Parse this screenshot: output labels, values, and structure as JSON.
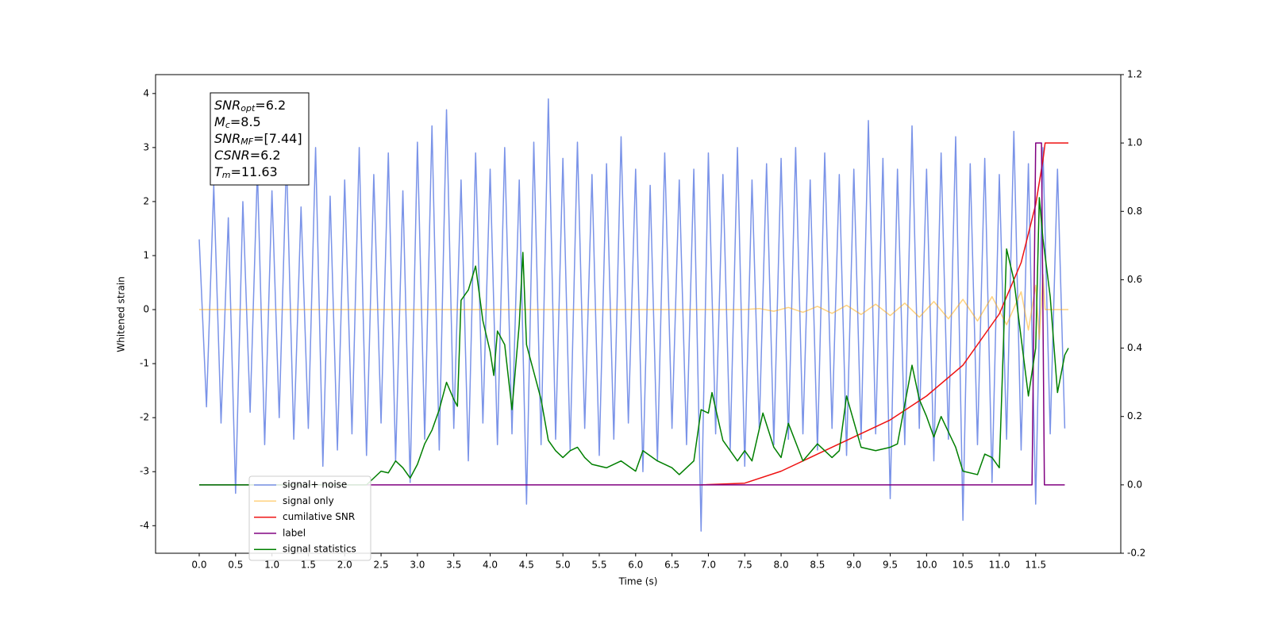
{
  "chart_data": {
    "type": "line",
    "xlabel": "Time (s)",
    "ylabel": "Whitened strain",
    "xlim": [
      -0.6,
      12.67
    ],
    "ylim": [
      -4.51,
      4.35
    ],
    "y2lim": [
      -0.2,
      1.2
    ],
    "xticks": [
      {
        "value": 0,
        "label": "0.0"
      },
      0.5,
      {
        "value": 1,
        "label": "1.0"
      },
      1.5,
      {
        "value": 2,
        "label": "2.0"
      },
      2.5,
      {
        "value": 3,
        "label": "3.0"
      },
      3.5,
      {
        "value": 4,
        "label": "4.0"
      },
      4.5,
      {
        "value": 5,
        "label": "5.0"
      },
      5.5,
      {
        "value": 6,
        "label": "6.0"
      },
      6.5,
      {
        "value": 7,
        "label": "7.0"
      },
      7.5,
      {
        "value": 8,
        "label": "8.0"
      },
      8.5,
      {
        "value": 9,
        "label": "9.0"
      },
      9.5,
      {
        "value": 10,
        "label": "10.0"
      },
      10.5,
      {
        "value": 11,
        "label": "11.0"
      },
      11.5
    ],
    "yticks": [
      -4,
      -3,
      -2,
      -1,
      0,
      1,
      2,
      3,
      4
    ],
    "y2ticks": [
      -0.2,
      {
        "value": 0,
        "label": "0.0"
      },
      0.2,
      0.4,
      0.6,
      0.8,
      {
        "value": 1,
        "label": "1.0"
      },
      1.2
    ],
    "legend": "lower left",
    "annotation": [
      {
        "symbol": "SNR",
        "subscript": "opt",
        "text": "=6.2"
      },
      {
        "symbol": "M",
        "subscript": "c",
        "text": "=8.5"
      },
      {
        "symbol": "SNR",
        "subscript": "MF",
        "text": "=[7.44]"
      },
      {
        "symbol": "CSNR",
        "subscript": "",
        "text": "=6.2"
      },
      {
        "symbol": "T",
        "subscript": "m",
        "text": "=11.63"
      }
    ],
    "series": [
      {
        "name": "signal+ noise",
        "color": "#7a93e8",
        "axis": "y",
        "x": [
          0.0,
          0.1,
          0.2,
          0.3,
          0.4,
          0.5,
          0.6,
          0.7,
          0.8,
          0.9,
          1.0,
          1.1,
          1.2,
          1.3,
          1.4,
          1.5,
          1.6,
          1.7,
          1.8,
          1.9,
          2.0,
          2.1,
          2.2,
          2.3,
          2.4,
          2.5,
          2.6,
          2.7,
          2.8,
          2.9,
          3.0,
          3.1,
          3.2,
          3.3,
          3.4,
          3.5,
          3.6,
          3.7,
          3.8,
          3.9,
          4.0,
          4.1,
          4.2,
          4.3,
          4.4,
          4.5,
          4.6,
          4.7,
          4.8,
          4.9,
          5.0,
          5.1,
          5.2,
          5.3,
          5.4,
          5.5,
          5.6,
          5.7,
          5.8,
          5.9,
          6.0,
          6.1,
          6.2,
          6.3,
          6.4,
          6.5,
          6.6,
          6.7,
          6.8,
          6.9,
          7.0,
          7.1,
          7.2,
          7.3,
          7.4,
          7.5,
          7.6,
          7.7,
          7.8,
          7.9,
          8.0,
          8.1,
          8.2,
          8.3,
          8.4,
          8.5,
          8.6,
          8.7,
          8.8,
          8.9,
          9.0,
          9.1,
          9.2,
          9.3,
          9.4,
          9.5,
          9.6,
          9.7,
          9.8,
          9.9,
          10.0,
          10.1,
          10.2,
          10.3,
          10.4,
          10.5,
          10.6,
          10.7,
          10.8,
          10.9,
          11.0,
          11.1,
          11.2,
          11.3,
          11.4,
          11.5,
          11.6,
          11.7,
          11.8,
          11.9
        ],
        "values": [
          1.3,
          -1.8,
          2.3,
          -2.1,
          1.7,
          -3.4,
          2.0,
          -1.9,
          2.6,
          -2.5,
          2.2,
          -2.0,
          2.8,
          -2.4,
          1.9,
          -2.2,
          3.0,
          -2.9,
          2.1,
          -2.6,
          2.4,
          -2.3,
          3.0,
          -2.7,
          2.5,
          -2.1,
          2.9,
          -2.8,
          2.2,
          -3.2,
          3.1,
          -2.4,
          3.4,
          -2.6,
          3.7,
          -2.2,
          2.4,
          -2.8,
          2.9,
          -2.1,
          2.6,
          -2.5,
          3.0,
          -2.3,
          2.4,
          -3.6,
          3.1,
          -2.5,
          3.9,
          -2.4,
          2.8,
          -2.6,
          3.1,
          -2.2,
          2.5,
          -2.7,
          2.7,
          -2.4,
          3.2,
          -2.1,
          2.6,
          -3.0,
          2.3,
          -2.8,
          2.9,
          -2.2,
          2.4,
          -2.5,
          2.6,
          -4.1,
          2.9,
          -2.3,
          2.5,
          -2.6,
          3.0,
          -2.9,
          2.4,
          -2.2,
          2.7,
          -2.5,
          2.8,
          -2.4,
          3.0,
          -2.3,
          2.4,
          -2.6,
          2.9,
          -2.2,
          2.5,
          -2.7,
          2.6,
          -2.4,
          3.5,
          -2.3,
          2.8,
          -3.5,
          2.6,
          -2.5,
          3.4,
          -2.2,
          2.6,
          -2.8,
          2.9,
          -2.4,
          3.2,
          -3.9,
          2.7,
          -2.5,
          2.8,
          -3.2,
          2.5,
          -2.4,
          3.3,
          -2.6,
          2.7,
          -3.6,
          3.0,
          -2.3,
          2.6,
          -2.2
        ]
      },
      {
        "name": "signal only",
        "color": "#ffa500",
        "axis": "y",
        "x": [
          0.0,
          7.5,
          7.7,
          7.9,
          8.1,
          8.3,
          8.5,
          8.7,
          8.9,
          9.1,
          9.3,
          9.5,
          9.7,
          9.9,
          10.1,
          10.3,
          10.5,
          10.7,
          10.9,
          11.1,
          11.3,
          11.4,
          11.5,
          11.55,
          11.6,
          11.63,
          11.95
        ],
        "values": [
          0,
          0,
          0.02,
          -0.03,
          0.04,
          -0.05,
          0.06,
          -0.07,
          0.08,
          -0.09,
          0.1,
          -0.11,
          0.12,
          -0.14,
          0.15,
          -0.17,
          0.19,
          -0.21,
          0.24,
          -0.28,
          0.33,
          -0.38,
          0.45,
          -0.55,
          0.65,
          0,
          0
        ]
      },
      {
        "name": "cumilative SNR",
        "color": "#ee1111",
        "axis": "y2",
        "x": [
          6.9,
          7.5,
          8.0,
          8.5,
          9.0,
          9.5,
          10.0,
          10.5,
          11.0,
          11.3,
          11.5,
          11.6,
          11.63,
          11.95
        ],
        "values": [
          0,
          0.005,
          0.04,
          0.09,
          0.14,
          0.19,
          0.26,
          0.35,
          0.5,
          0.65,
          0.82,
          0.95,
          1.0,
          1.0
        ]
      },
      {
        "name": "label",
        "color": "#800080",
        "axis": "y2",
        "x": [
          0.0,
          11.45,
          11.5,
          11.58,
          11.62,
          11.9
        ],
        "values": [
          0,
          0,
          1,
          1,
          0,
          0
        ]
      },
      {
        "name": "signal statistics",
        "color": "#007f00",
        "axis": "y2",
        "x": [
          0.0,
          2.3,
          2.4,
          2.5,
          2.6,
          2.7,
          2.8,
          2.9,
          3.0,
          3.1,
          3.2,
          3.3,
          3.4,
          3.5,
          3.55,
          3.6,
          3.7,
          3.8,
          3.9,
          4.0,
          4.05,
          4.1,
          4.2,
          4.3,
          4.4,
          4.45,
          4.5,
          4.6,
          4.7,
          4.8,
          4.9,
          5.0,
          5.1,
          5.2,
          5.3,
          5.4,
          5.6,
          5.8,
          6.0,
          6.1,
          6.3,
          6.5,
          6.6,
          6.7,
          6.8,
          6.9,
          7.0,
          7.05,
          7.2,
          7.4,
          7.5,
          7.6,
          7.75,
          7.9,
          8.0,
          8.1,
          8.3,
          8.5,
          8.7,
          8.8,
          8.9,
          9.1,
          9.3,
          9.5,
          9.6,
          9.8,
          9.9,
          10.0,
          10.1,
          10.2,
          10.4,
          10.5,
          10.7,
          10.8,
          10.9,
          11.0,
          11.1,
          11.2,
          11.4,
          11.5,
          11.55,
          11.6,
          11.7,
          11.8,
          11.9,
          11.95
        ],
        "values": [
          0,
          0,
          0.02,
          0.04,
          0.035,
          0.07,
          0.05,
          0.02,
          0.06,
          0.12,
          0.16,
          0.22,
          0.3,
          0.25,
          0.23,
          0.54,
          0.57,
          0.64,
          0.48,
          0.39,
          0.32,
          0.45,
          0.41,
          0.22,
          0.47,
          0.68,
          0.41,
          0.33,
          0.25,
          0.13,
          0.1,
          0.08,
          0.1,
          0.11,
          0.08,
          0.06,
          0.05,
          0.07,
          0.04,
          0.1,
          0.07,
          0.05,
          0.03,
          0.05,
          0.07,
          0.22,
          0.21,
          0.27,
          0.13,
          0.07,
          0.1,
          0.07,
          0.21,
          0.11,
          0.08,
          0.18,
          0.07,
          0.12,
          0.08,
          0.1,
          0.26,
          0.11,
          0.1,
          0.11,
          0.12,
          0.35,
          0.25,
          0.2,
          0.14,
          0.2,
          0.11,
          0.04,
          0.03,
          0.09,
          0.08,
          0.05,
          0.69,
          0.6,
          0.26,
          0.4,
          0.84,
          0.72,
          0.55,
          0.27,
          0.38,
          0.4
        ]
      }
    ]
  }
}
